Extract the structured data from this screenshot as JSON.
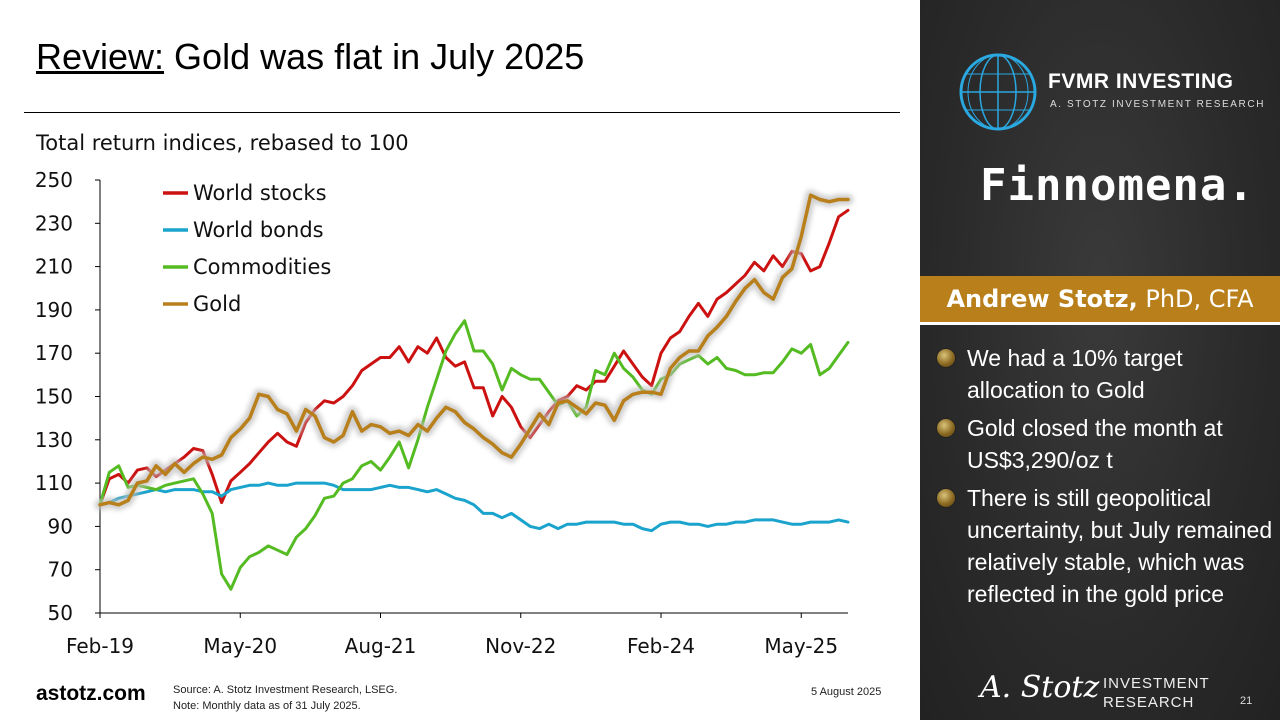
{
  "slide": {
    "title_highlight": "Review:",
    "title_rest": " Gold was flat in July 2025",
    "site": "astotz.com",
    "source_line1": "Source: A. Stotz Investment Research, LSEG.",
    "source_line2": "Note: Monthly data as of 31 July 2025.",
    "date": "5 August 2025",
    "page_number": "21"
  },
  "sidebar": {
    "brand": "FVMR INVESTING",
    "brand_sub": "A. STOTZ INVESTMENT RESEARCH",
    "partner": "Finnomena.",
    "author_name": "Andrew Stotz,",
    "author_credentials": " PhD, CFA",
    "bullets": [
      "We had a 10% target allocation to Gold",
      "Gold closed the month at US$3,290/oz t",
      "There is still geopolitical uncertainty, but July remained relatively stable, which was reflected in the gold price"
    ],
    "signature": "A. Stotz",
    "footer_line1": "INVESTMENT",
    "footer_line2": "RESEARCH"
  },
  "chart_data": {
    "type": "line",
    "title": "Total return indices, rebased to 100",
    "x_start": "Feb-19",
    "x_ticks": [
      "Feb-19",
      "May-20",
      "Aug-21",
      "Nov-22",
      "Feb-24",
      "May-25"
    ],
    "ylim": [
      50,
      250
    ],
    "y_ticks": [
      50,
      70,
      90,
      110,
      130,
      150,
      170,
      190,
      210,
      230,
      250
    ],
    "legend_position": "top-left",
    "series": [
      {
        "name": "World stocks",
        "color": "#cc1111",
        "values": [
          100,
          112,
          114,
          110,
          116,
          117,
          113,
          116,
          119,
          122,
          126,
          125,
          114,
          101,
          111,
          115,
          119,
          124,
          129,
          133,
          129,
          127,
          138,
          144,
          148,
          147,
          150,
          155,
          162,
          165,
          168,
          168,
          173,
          166,
          173,
          170,
          177,
          168,
          164,
          166,
          154,
          154,
          141,
          150,
          145,
          136,
          131,
          137,
          143,
          148,
          150,
          155,
          153,
          157,
          157,
          164,
          171,
          165,
          159,
          155,
          170,
          177,
          180,
          187,
          193,
          187,
          195,
          198,
          202,
          206,
          212,
          208,
          215,
          210,
          217,
          216,
          208,
          210,
          221,
          233,
          236
        ]
      },
      {
        "name": "World bonds",
        "color": "#1aa3cc",
        "values": [
          100,
          101,
          103,
          104,
          105,
          106,
          107,
          106,
          107,
          107,
          107,
          106,
          106,
          104,
          107,
          108,
          109,
          109,
          110,
          109,
          109,
          110,
          110,
          110,
          110,
          109,
          107,
          107,
          107,
          107,
          108,
          109,
          108,
          108,
          107,
          106,
          107,
          105,
          103,
          102,
          100,
          96,
          96,
          94,
          96,
          93,
          90,
          89,
          91,
          89,
          91,
          91,
          92,
          92,
          92,
          92,
          91,
          91,
          89,
          88,
          91,
          92,
          92,
          91,
          91,
          90,
          91,
          91,
          92,
          92,
          93,
          93,
          93,
          92,
          91,
          91,
          92,
          92,
          92,
          93,
          92
        ]
      },
      {
        "name": "Commodities",
        "color": "#55bb22",
        "values": [
          100,
          115,
          118,
          108,
          109,
          108,
          107,
          109,
          110,
          111,
          112,
          105,
          96,
          68,
          61,
          71,
          76,
          78,
          81,
          79,
          77,
          85,
          89,
          95,
          103,
          104,
          110,
          112,
          118,
          120,
          116,
          122,
          129,
          117,
          130,
          145,
          158,
          171,
          179,
          185,
          171,
          171,
          165,
          153,
          163,
          160,
          158,
          158,
          152,
          146,
          148,
          141,
          145,
          162,
          160,
          170,
          163,
          159,
          153,
          151,
          158,
          160,
          165,
          167,
          169,
          165,
          168,
          163,
          162,
          160,
          160,
          161,
          161,
          166,
          172,
          170,
          174,
          160,
          163,
          169,
          175
        ]
      },
      {
        "name": "Gold",
        "color": "#b87f1a",
        "values": [
          100,
          101,
          100,
          102,
          110,
          111,
          118,
          114,
          119,
          115,
          119,
          122,
          121,
          123,
          131,
          135,
          140,
          151,
          150,
          144,
          142,
          134,
          144,
          141,
          131,
          129,
          132,
          143,
          134,
          137,
          136,
          133,
          134,
          132,
          137,
          134,
          140,
          145,
          143,
          138,
          135,
          131,
          128,
          124,
          122,
          128,
          135,
          142,
          137,
          147,
          148,
          145,
          142,
          147,
          146,
          139,
          148,
          151,
          152,
          152,
          151,
          163,
          168,
          171,
          171,
          178,
          182,
          187,
          194,
          200,
          204,
          198,
          195,
          205,
          209,
          224,
          243,
          241,
          240,
          241,
          241
        ]
      }
    ]
  }
}
